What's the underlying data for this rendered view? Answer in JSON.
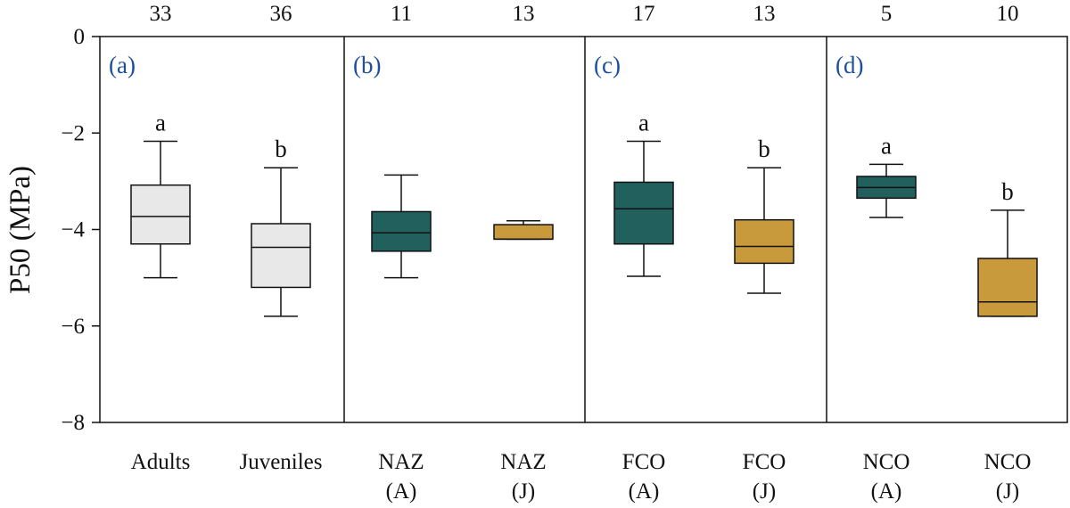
{
  "chart_data": {
    "type": "box",
    "ylabel": "P50 (MPa)",
    "ylim": [
      -8,
      0
    ],
    "yticks": [
      0,
      -2,
      -4,
      -6,
      -8
    ],
    "ytick_labels": [
      "0",
      "−2",
      "−4",
      "−6",
      "−8"
    ],
    "colors": {
      "all": "#e8e8e8",
      "adult": "#22605e",
      "juvenile": "#c89a3c",
      "panel_label": "#1f4f9a"
    },
    "panels": [
      {
        "label": "(a)",
        "groups": [
          0,
          1
        ]
      },
      {
        "label": "(b)",
        "groups": [
          2,
          3
        ]
      },
      {
        "label": "(c)",
        "groups": [
          4,
          5
        ]
      },
      {
        "label": "(d)",
        "groups": [
          6,
          7
        ]
      }
    ],
    "groups": [
      {
        "category": [
          "Adults"
        ],
        "n": "33",
        "letter": "a",
        "color": "all",
        "whisker_low": -5.0,
        "q1": -4.3,
        "median": -3.73,
        "q3": -3.08,
        "whisker_high": -2.17
      },
      {
        "category": [
          "Juveniles"
        ],
        "n": "36",
        "letter": "b",
        "color": "all",
        "whisker_low": -5.8,
        "q1": -5.2,
        "median": -4.37,
        "q3": -3.88,
        "whisker_high": -2.72
      },
      {
        "category": [
          "NAZ",
          "(A)"
        ],
        "n": "11",
        "letter": "",
        "color": "adult",
        "whisker_low": -5.0,
        "q1": -4.45,
        "median": -4.07,
        "q3": -3.63,
        "whisker_high": -2.87
      },
      {
        "category": [
          "NAZ",
          "(J)"
        ],
        "n": "13",
        "letter": "",
        "color": "juvenile",
        "whisker_low": -4.2,
        "q1": -4.2,
        "median": -4.2,
        "q3": -3.9,
        "whisker_high": -3.82
      },
      {
        "category": [
          "FCO",
          "(A)"
        ],
        "n": "17",
        "letter": "a",
        "color": "adult",
        "whisker_low": -4.97,
        "q1": -4.3,
        "median": -3.57,
        "q3": -3.02,
        "whisker_high": -2.17
      },
      {
        "category": [
          "FCO",
          "(J)"
        ],
        "n": "13",
        "letter": "b",
        "color": "juvenile",
        "whisker_low": -5.32,
        "q1": -4.7,
        "median": -4.35,
        "q3": -3.8,
        "whisker_high": -2.72
      },
      {
        "category": [
          "NCO",
          "(A)"
        ],
        "n": "5",
        "letter": "a",
        "color": "adult",
        "whisker_low": -3.75,
        "q1": -3.35,
        "median": -3.13,
        "q3": -2.9,
        "whisker_high": -2.65
      },
      {
        "category": [
          "NCO",
          "(J)"
        ],
        "n": "10",
        "letter": "b",
        "color": "juvenile",
        "whisker_low": -5.8,
        "q1": -5.8,
        "median": -5.5,
        "q3": -4.6,
        "whisker_high": -3.6
      }
    ]
  }
}
